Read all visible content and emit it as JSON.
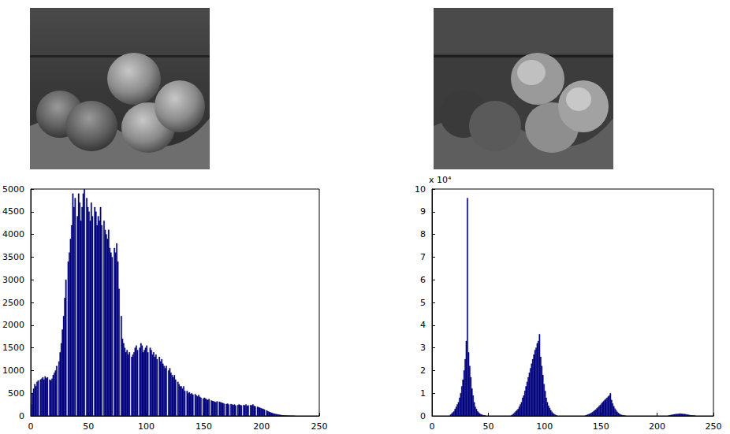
{
  "chart_data": [
    {
      "type": "histogram",
      "color": "#00007f",
      "grid": false,
      "xlim": [
        0,
        250
      ],
      "xticks": [
        0,
        50,
        100,
        150,
        200,
        250
      ],
      "ylim": [
        0,
        5000
      ],
      "yticks": [
        0,
        500,
        1000,
        1500,
        2000,
        2500,
        3000,
        3500,
        4000,
        4500,
        5000
      ],
      "bins": [
        0,
        1,
        2,
        3,
        4,
        5,
        6,
        7,
        8,
        9,
        10,
        11,
        12,
        13,
        14,
        15,
        16,
        17,
        18,
        19,
        20,
        21,
        22,
        23,
        24,
        25,
        26,
        27,
        28,
        29,
        30,
        31,
        32,
        33,
        34,
        35,
        36,
        37,
        38,
        39,
        40,
        41,
        42,
        43,
        44,
        45,
        46,
        47,
        48,
        49,
        50,
        51,
        52,
        53,
        54,
        55,
        56,
        57,
        58,
        59,
        60,
        61,
        62,
        63,
        64,
        65,
        66,
        67,
        68,
        69,
        70,
        71,
        72,
        73,
        74,
        75,
        76,
        77,
        78,
        79,
        80,
        81,
        82,
        83,
        84,
        85,
        86,
        87,
        88,
        89,
        90,
        91,
        92,
        93,
        94,
        95,
        96,
        97,
        98,
        99,
        100,
        101,
        102,
        103,
        104,
        105,
        106,
        107,
        108,
        109,
        110,
        111,
        112,
        113,
        114,
        115,
        116,
        117,
        118,
        119,
        120,
        121,
        122,
        123,
        124,
        125,
        126,
        127,
        128,
        129,
        130,
        131,
        132,
        133,
        134,
        135,
        136,
        137,
        138,
        139,
        140,
        141,
        142,
        143,
        144,
        145,
        146,
        147,
        148,
        149,
        150,
        151,
        152,
        153,
        154,
        155,
        156,
        157,
        158,
        159,
        160,
        161,
        162,
        163,
        164,
        165,
        166,
        167,
        168,
        169,
        170,
        171,
        172,
        173,
        174,
        175,
        176,
        177,
        178,
        179,
        180,
        181,
        182,
        183,
        184,
        185,
        186,
        187,
        188,
        189,
        190,
        191,
        192,
        193,
        194,
        195,
        196,
        197,
        198,
        199,
        200,
        201,
        202,
        203,
        204,
        205,
        206,
        207,
        208,
        209,
        210,
        211,
        212,
        213,
        214,
        215,
        216,
        217,
        218,
        219,
        220,
        221,
        222,
        223,
        224,
        225,
        226,
        227,
        228,
        229,
        230,
        231,
        232,
        233,
        234,
        235,
        236,
        237,
        238,
        239,
        240,
        241,
        242,
        243,
        244,
        245,
        246,
        247,
        248,
        249,
        250,
        251,
        252,
        253,
        254,
        255,
        256
      ],
      "values": [
        250,
        500,
        600,
        700,
        650,
        750,
        780,
        0,
        800,
        820,
        850,
        800,
        870,
        830,
        850,
        0,
        800,
        780,
        820,
        900,
        950,
        1000,
        1100,
        0,
        1200,
        1400,
        1600,
        1900,
        2200,
        2600,
        3000,
        0,
        3400,
        3600,
        3900,
        4200,
        4900,
        4600,
        4800,
        0,
        4400,
        4900,
        4700,
        4300,
        4600,
        4900,
        5000,
        0,
        4800,
        4600,
        4500,
        4300,
        4700,
        4400,
        0,
        4600,
        4500,
        4200,
        4400,
        4300,
        4600,
        4200,
        0,
        4300,
        4100,
        4000,
        3900,
        4100,
        3700,
        3600,
        3500,
        0,
        3700,
        3600,
        3800,
        3400,
        2800,
        0,
        2200,
        1700,
        1600,
        1500,
        1400,
        1450,
        1350,
        1400,
        0,
        1300,
        1350,
        1400,
        1500,
        1550,
        1450,
        0,
        1500,
        1600,
        1550,
        1400,
        1450,
        1500,
        1550,
        1400,
        0,
        1500,
        1450,
        1350,
        1400,
        1300,
        1350,
        1250,
        0,
        1300,
        1200,
        1250,
        1150,
        1100,
        1050,
        1100,
        0,
        1000,
        1050,
        950,
        900,
        850,
        900,
        800,
        0,
        750,
        700,
        650,
        650,
        600,
        650,
        550,
        0,
        550,
        500,
        520,
        480,
        500,
        470,
        0,
        480,
        450,
        430,
        460,
        420,
        400,
        0,
        380,
        400,
        380,
        360,
        350,
        370,
        0,
        340,
        330,
        320,
        310,
        300,
        320,
        0,
        310,
        300,
        290,
        280,
        270,
        0,
        260,
        270,
        250,
        0,
        260,
        250,
        240,
        250,
        230,
        0,
        240,
        250,
        240,
        230,
        0,
        240,
        230,
        250,
        220,
        230,
        0,
        240,
        230,
        250,
        220,
        210,
        0,
        200,
        190,
        180,
        170,
        160,
        150,
        140,
        0,
        120,
        100,
        90,
        80,
        70,
        60,
        50,
        45,
        40,
        35,
        30,
        25,
        20,
        15,
        12,
        10,
        8,
        6,
        5,
        4,
        3,
        2,
        2,
        1,
        1,
        0,
        0,
        0,
        0,
        0,
        0,
        0,
        0,
        0,
        0,
        0,
        0,
        0,
        0,
        0,
        0,
        0,
        0,
        0,
        0,
        0,
        0,
        0,
        0,
        0,
        0,
        0
      ]
    },
    {
      "type": "histogram",
      "color": "#00007f",
      "grid": false,
      "annotations": [
        "x 10⁴"
      ],
      "xlim": [
        0,
        250
      ],
      "xticks": [
        0,
        50,
        100,
        150,
        200,
        250
      ],
      "ylim": [
        0,
        10
      ],
      "yticks": [
        0,
        1,
        2,
        3,
        4,
        5,
        6,
        7,
        8,
        9,
        10
      ],
      "bins": [
        0,
        1,
        2,
        3,
        4,
        5,
        6,
        7,
        8,
        9,
        10,
        11,
        12,
        13,
        14,
        15,
        16,
        17,
        18,
        19,
        20,
        21,
        22,
        23,
        24,
        25,
        26,
        27,
        28,
        29,
        30,
        31,
        32,
        33,
        34,
        35,
        36,
        37,
        38,
        39,
        40,
        41,
        42,
        43,
        44,
        45,
        46,
        47,
        48,
        49,
        50,
        51,
        52,
        53,
        54,
        55,
        56,
        57,
        58,
        59,
        60,
        61,
        62,
        63,
        64,
        65,
        66,
        67,
        68,
        69,
        70,
        71,
        72,
        73,
        74,
        75,
        76,
        77,
        78,
        79,
        80,
        81,
        82,
        83,
        84,
        85,
        86,
        87,
        88,
        89,
        90,
        91,
        92,
        93,
        94,
        95,
        96,
        97,
        98,
        99,
        100,
        101,
        102,
        103,
        104,
        105,
        106,
        107,
        108,
        109,
        110,
        111,
        112,
        113,
        114,
        115,
        116,
        117,
        118,
        119,
        120,
        121,
        122,
        123,
        124,
        125,
        126,
        127,
        128,
        129,
        130,
        131,
        132,
        133,
        134,
        135,
        136,
        137,
        138,
        139,
        140,
        141,
        142,
        143,
        144,
        145,
        146,
        147,
        148,
        149,
        150,
        151,
        152,
        153,
        154,
        155,
        156,
        157,
        158,
        159,
        160,
        161,
        162,
        163,
        164,
        165,
        166,
        167,
        168,
        169,
        170,
        171,
        172,
        173,
        174,
        175,
        176,
        177,
        178,
        179,
        180,
        181,
        182,
        183,
        184,
        185,
        186,
        187,
        188,
        189,
        190,
        191,
        192,
        193,
        194,
        195,
        196,
        197,
        198,
        199,
        200,
        201,
        202,
        203,
        204,
        205,
        206,
        207,
        208,
        209,
        210,
        211,
        212,
        213,
        214,
        215,
        216,
        217,
        218,
        219,
        220,
        221,
        222,
        223,
        224,
        225,
        226,
        227,
        228,
        229,
        230,
        231,
        232,
        233,
        234,
        235,
        236,
        237,
        238,
        239,
        240,
        241,
        242,
        243,
        244,
        245,
        246,
        247,
        248,
        249,
        250,
        251,
        252,
        253,
        254,
        255,
        256
      ],
      "values": [
        0,
        0,
        0,
        0,
        0,
        0,
        0,
        0,
        0,
        0,
        0,
        0,
        0,
        0,
        0,
        0,
        0.05,
        0.1,
        0.15,
        0.2,
        0.3,
        0.4,
        0.5,
        0.6,
        0.8,
        1.0,
        1.3,
        1.6,
        2.0,
        2.5,
        3.3,
        9.6,
        2.8,
        2.2,
        1.7,
        1.2,
        0.9,
        0.6,
        0.4,
        0.3,
        0.2,
        0.15,
        0.1,
        0.07,
        0.05,
        0.03,
        0.02,
        0.01,
        0,
        0,
        0,
        0,
        0,
        0,
        0,
        0,
        0,
        0,
        0,
        0,
        0,
        0,
        0,
        0,
        0,
        0,
        0,
        0,
        0,
        0,
        0.02,
        0.05,
        0.1,
        0.15,
        0.2,
        0.25,
        0.3,
        0.4,
        0.5,
        0.6,
        0.8,
        0.9,
        1.1,
        1.3,
        1.5,
        1.7,
        1.9,
        2.1,
        2.3,
        2.5,
        2.7,
        2.9,
        3.0,
        3.2,
        3.3,
        3.6,
        2.6,
        2.2,
        1.8,
        1.4,
        1.1,
        0.8,
        0.6,
        0.45,
        0.35,
        0.25,
        0.18,
        0.12,
        0.08,
        0.05,
        0.02,
        0,
        0,
        0,
        0,
        0,
        0,
        0,
        0,
        0,
        0,
        0,
        0,
        0,
        0,
        0,
        0,
        0,
        0,
        0,
        0,
        0,
        0,
        0,
        0,
        0,
        0.02,
        0.04,
        0.06,
        0.08,
        0.1,
        0.13,
        0.16,
        0.2,
        0.24,
        0.28,
        0.33,
        0.38,
        0.43,
        0.48,
        0.54,
        0.6,
        0.65,
        0.7,
        0.75,
        0.8,
        0.85,
        0.9,
        1.0,
        0.7,
        0.55,
        0.42,
        0.32,
        0.25,
        0.18,
        0.13,
        0.09,
        0.06,
        0.04,
        0.03,
        0.02,
        0.01,
        0,
        0,
        0,
        0,
        0,
        0,
        0,
        0,
        0,
        0,
        0,
        0,
        0,
        0,
        0,
        0,
        0,
        0,
        0,
        0,
        0,
        0,
        0,
        0,
        0,
        0,
        0,
        0,
        0,
        0,
        0,
        0,
        0,
        0,
        0,
        0,
        0,
        0,
        0.02,
        0.03,
        0.04,
        0.05,
        0.06,
        0.07,
        0.08,
        0.08,
        0.09,
        0.09,
        0.1,
        0.09,
        0.09,
        0.08,
        0.08,
        0.07,
        0.06,
        0.05,
        0.04,
        0.03,
        0.02,
        0.02,
        0.01,
        0.01,
        0,
        0,
        0,
        0,
        0,
        0,
        0,
        0,
        0,
        0,
        0,
        0,
        0,
        0,
        0,
        0,
        0,
        0,
        0,
        0,
        0,
        0
      ]
    }
  ]
}
